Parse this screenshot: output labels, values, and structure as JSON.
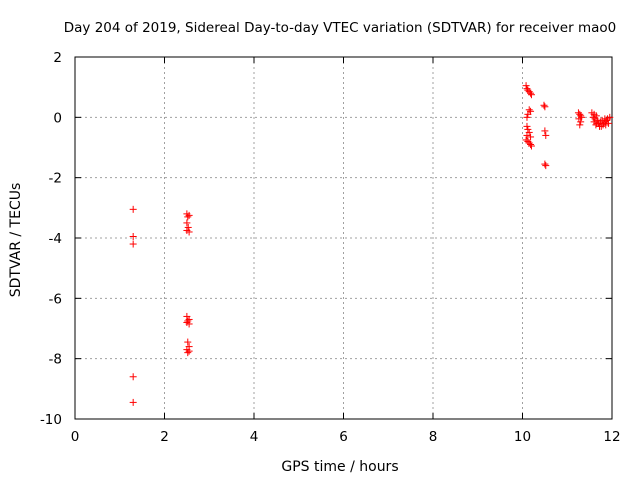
{
  "chart_data": {
    "type": "scatter",
    "title": "Day 204 of 2019, Sidereal Day-to-day VTEC variation (SDTVAR) for receiver mao0",
    "xlabel": "GPS time / hours",
    "ylabel": "SDTVAR / TECUs",
    "xlim": [
      0,
      12
    ],
    "ylim": [
      -10,
      2
    ],
    "xticks": [
      "0",
      "2",
      "4",
      "6",
      "8",
      "10",
      "12"
    ],
    "yticks": [
      "2",
      "0",
      "-2",
      "-4",
      "-6",
      "-8",
      "-10"
    ],
    "grid": true,
    "marker": "+",
    "colors": {
      "series": "#ff0000",
      "grid": "#a0a0a0",
      "axes": "#000000"
    },
    "series": [
      {
        "name": "SDTVAR",
        "points": [
          [
            1.3,
            -3.05
          ],
          [
            1.3,
            -3.95
          ],
          [
            1.3,
            -4.2
          ],
          [
            1.3,
            -8.6
          ],
          [
            1.3,
            -9.45
          ],
          [
            2.5,
            -3.2
          ],
          [
            2.52,
            -3.3
          ],
          [
            2.55,
            -3.25
          ],
          [
            2.5,
            -3.5
          ],
          [
            2.53,
            -3.65
          ],
          [
            2.5,
            -3.75
          ],
          [
            2.55,
            -3.8
          ],
          [
            2.5,
            -6.6
          ],
          [
            2.55,
            -6.7
          ],
          [
            2.5,
            -6.8
          ],
          [
            2.55,
            -6.85
          ],
          [
            2.52,
            -6.75
          ],
          [
            2.52,
            -7.45
          ],
          [
            2.55,
            -7.6
          ],
          [
            2.5,
            -7.7
          ],
          [
            2.55,
            -7.75
          ],
          [
            2.52,
            -7.8
          ],
          [
            10.08,
            1.05
          ],
          [
            10.1,
            0.95
          ],
          [
            10.12,
            0.9
          ],
          [
            10.15,
            0.85
          ],
          [
            10.18,
            0.8
          ],
          [
            10.2,
            0.75
          ],
          [
            10.15,
            0.25
          ],
          [
            10.18,
            0.2
          ],
          [
            10.12,
            0.1
          ],
          [
            10.1,
            0.0
          ],
          [
            10.1,
            -0.3
          ],
          [
            10.12,
            -0.4
          ],
          [
            10.15,
            -0.5
          ],
          [
            10.1,
            -0.6
          ],
          [
            10.18,
            -0.65
          ],
          [
            10.08,
            -0.75
          ],
          [
            10.12,
            -0.8
          ],
          [
            10.15,
            -0.85
          ],
          [
            10.18,
            -0.9
          ],
          [
            10.2,
            -0.95
          ],
          [
            10.48,
            0.4
          ],
          [
            10.5,
            0.35
          ],
          [
            10.5,
            -0.45
          ],
          [
            10.52,
            -0.6
          ],
          [
            10.5,
            -1.55
          ],
          [
            10.52,
            -1.6
          ],
          [
            11.25,
            0.15
          ],
          [
            11.28,
            0.1
          ],
          [
            11.3,
            0.05
          ],
          [
            11.26,
            -0.05
          ],
          [
            11.3,
            -0.15
          ],
          [
            11.28,
            -0.25
          ],
          [
            11.32,
            0.0
          ],
          [
            11.55,
            0.15
          ],
          [
            11.6,
            0.1
          ],
          [
            11.65,
            0.05
          ],
          [
            11.58,
            0.0
          ],
          [
            11.62,
            -0.05
          ],
          [
            11.68,
            -0.1
          ],
          [
            11.6,
            -0.15
          ],
          [
            11.7,
            -0.2
          ],
          [
            11.64,
            -0.25
          ],
          [
            11.72,
            -0.3
          ],
          [
            11.76,
            -0.3
          ],
          [
            11.8,
            -0.25
          ],
          [
            11.82,
            -0.2
          ],
          [
            11.85,
            -0.15
          ],
          [
            11.88,
            -0.1
          ],
          [
            11.9,
            -0.05
          ],
          [
            11.95,
            0.0
          ],
          [
            11.78,
            -0.1
          ],
          [
            11.84,
            -0.05
          ],
          [
            11.92,
            -0.2
          ],
          [
            11.86,
            -0.25
          ],
          [
            11.74,
            -0.15
          ],
          [
            11.66,
            -0.2
          ]
        ]
      }
    ]
  }
}
